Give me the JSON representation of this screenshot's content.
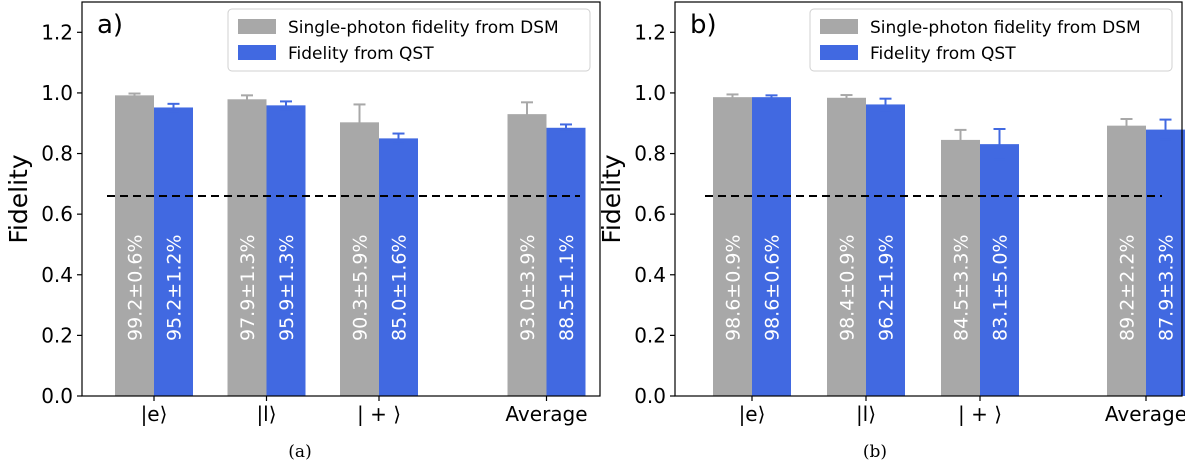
{
  "colors": {
    "dsm": "#a8a8a8",
    "qst": "#4169e1",
    "dsm_err": "#a8a8a8",
    "qst_err": "#4169e1",
    "threshold": "#000000"
  },
  "chart_data": [
    {
      "type": "bar",
      "panel_label": "a)",
      "caption": "(a)",
      "categories": [
        "|e⟩",
        "|l⟩",
        "| + ⟩",
        "Average"
      ],
      "series": [
        {
          "name": "Single-photon fidelity from DSM",
          "values": [
            0.992,
            0.979,
            0.903,
            0.93
          ],
          "errors": [
            0.006,
            0.013,
            0.059,
            0.039
          ],
          "labels": [
            "99.2±0.6%",
            "97.9±1.3%",
            "90.3±5.9%",
            "93.0±3.9%"
          ]
        },
        {
          "name": "Fidelity from QST",
          "values": [
            0.952,
            0.959,
            0.85,
            0.885
          ],
          "errors": [
            0.012,
            0.013,
            0.016,
            0.011
          ],
          "labels": [
            "95.2±1.2%",
            "95.9±1.3%",
            "85.0±1.6%",
            "88.5±1.1%"
          ]
        }
      ],
      "ylabel": "Fidelity",
      "xlabel": "",
      "ylim": [
        0,
        1.3
      ],
      "yticks": [
        "0.0",
        "0.2",
        "0.4",
        "0.6",
        "0.8",
        "1.0",
        "1.2"
      ],
      "threshold": 0.66,
      "legend_position": "top-right",
      "grid": false
    },
    {
      "type": "bar",
      "panel_label": "b)",
      "caption": "(b)",
      "categories": [
        "|e⟩",
        "|l⟩",
        "| + ⟩",
        "Average"
      ],
      "series": [
        {
          "name": "Single-photon fidelity from DSM",
          "values": [
            0.986,
            0.984,
            0.845,
            0.892
          ],
          "errors": [
            0.009,
            0.009,
            0.033,
            0.022
          ],
          "labels": [
            "98.6±0.9%",
            "98.4±0.9%",
            "84.5±3.3%",
            "89.2±2.2%"
          ]
        },
        {
          "name": "Fidelity from QST",
          "values": [
            0.986,
            0.962,
            0.831,
            0.879
          ],
          "errors": [
            0.006,
            0.019,
            0.05,
            0.033
          ],
          "labels": [
            "98.6±0.6%",
            "96.2±1.9%",
            "83.1±5.0%",
            "87.9±3.3%"
          ]
        }
      ],
      "ylabel": "Fidelity",
      "xlabel": "",
      "ylim": [
        0,
        1.3
      ],
      "yticks": [
        "0.0",
        "0.2",
        "0.4",
        "0.6",
        "0.8",
        "1.0",
        "1.2"
      ],
      "threshold": 0.66,
      "legend_position": "top-right",
      "grid": false
    }
  ]
}
